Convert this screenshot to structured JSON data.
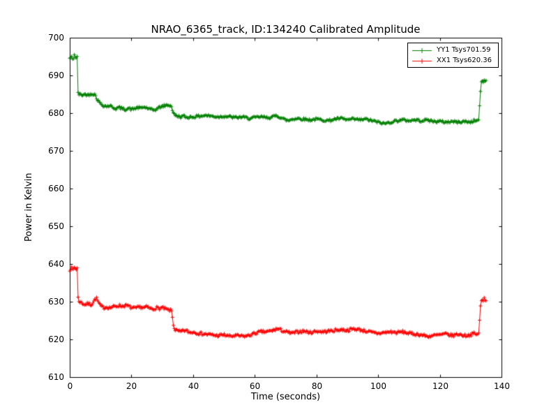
{
  "figure": {
    "background": "#ffffff",
    "axis_color": "#000000"
  },
  "chart_data": {
    "type": "line",
    "title": "NRAO_6365_track, ID:134240 Calibrated Amplitude",
    "xlabel": "Time (seconds)",
    "ylabel": "Power in Kelvin",
    "xlim": [
      0,
      140
    ],
    "ylim": [
      610,
      700
    ],
    "xticks": [
      0,
      20,
      40,
      60,
      80,
      100,
      120,
      140
    ],
    "yticks": [
      610,
      620,
      630,
      640,
      650,
      660,
      670,
      680,
      690,
      700
    ],
    "grid": false,
    "legend_position": "upper right",
    "marker": "+",
    "sample_step": 0.3,
    "series": [
      {
        "name": "YY1",
        "label": "YY1 Tsys701.59",
        "color": "#008000",
        "noise": 0.35,
        "seed": 42,
        "keypoints": [
          [
            0,
            694.5
          ],
          [
            0.5,
            695
          ],
          [
            1,
            694
          ],
          [
            1.5,
            695.5
          ],
          [
            2,
            694.5
          ],
          [
            2.4,
            694.8
          ],
          [
            2.7,
            685.5
          ],
          [
            3,
            685
          ],
          [
            4,
            684.8
          ],
          [
            5,
            685
          ],
          [
            6,
            684.8
          ],
          [
            7,
            685.2
          ],
          [
            8,
            685
          ],
          [
            8.5,
            684.5
          ],
          [
            9,
            683.5
          ],
          [
            10,
            682.5
          ],
          [
            11,
            682
          ],
          [
            12,
            681.8
          ],
          [
            13,
            682
          ],
          [
            14,
            681.5
          ],
          [
            15,
            681.2
          ],
          [
            16,
            681.5
          ],
          [
            17,
            681.2
          ],
          [
            18,
            681
          ],
          [
            19,
            681.3
          ],
          [
            20,
            681
          ],
          [
            21,
            681.2
          ],
          [
            22,
            681.5
          ],
          [
            23,
            681.3
          ],
          [
            24,
            681.6
          ],
          [
            25,
            681.4
          ],
          [
            26,
            681
          ],
          [
            27,
            680.8
          ],
          [
            28,
            681
          ],
          [
            29,
            681.5
          ],
          [
            30,
            681.8
          ],
          [
            31,
            682
          ],
          [
            32,
            682.2
          ],
          [
            33,
            681.8
          ],
          [
            33.6,
            680
          ],
          [
            34,
            679.5
          ],
          [
            35,
            679.2
          ],
          [
            36,
            679
          ],
          [
            37,
            679.2
          ],
          [
            38,
            678.8
          ],
          [
            39,
            679
          ],
          [
            40,
            679
          ],
          [
            42,
            679.2
          ],
          [
            44,
            679.4
          ],
          [
            46,
            679.2
          ],
          [
            48,
            679
          ],
          [
            50,
            679.2
          ],
          [
            52,
            679
          ],
          [
            54,
            678.8
          ],
          [
            56,
            679
          ],
          [
            58,
            678.6
          ],
          [
            60,
            678.8
          ],
          [
            62,
            679
          ],
          [
            64,
            678.8
          ],
          [
            66,
            679
          ],
          [
            67,
            679.4
          ],
          [
            68,
            679
          ],
          [
            70,
            678.2
          ],
          [
            71,
            678
          ],
          [
            72,
            678.4
          ],
          [
            74,
            678.6
          ],
          [
            76,
            678.4
          ],
          [
            78,
            678.2
          ],
          [
            80,
            678.4
          ],
          [
            82,
            678.2
          ],
          [
            84,
            678
          ],
          [
            86,
            678.4
          ],
          [
            88,
            678.6
          ],
          [
            90,
            678.2
          ],
          [
            92,
            678.4
          ],
          [
            94,
            678.2
          ],
          [
            96,
            678.4
          ],
          [
            98,
            678
          ],
          [
            100,
            677.6
          ],
          [
            102,
            677.2
          ],
          [
            104,
            677.6
          ],
          [
            106,
            678
          ],
          [
            108,
            678.2
          ],
          [
            110,
            678
          ],
          [
            112,
            678.2
          ],
          [
            114,
            678
          ],
          [
            116,
            678.2
          ],
          [
            118,
            677.8
          ],
          [
            120,
            677.8
          ],
          [
            122,
            677.6
          ],
          [
            124,
            677.8
          ],
          [
            126,
            677.6
          ],
          [
            128,
            677.8
          ],
          [
            130,
            677.6
          ],
          [
            131,
            678
          ],
          [
            132,
            678
          ],
          [
            132.6,
            678.2
          ],
          [
            133,
            683
          ],
          [
            133.3,
            687.5
          ],
          [
            133.7,
            688.5
          ],
          [
            134,
            688
          ],
          [
            134.4,
            689
          ],
          [
            134.8,
            688.2
          ],
          [
            135.2,
            688.8
          ]
        ]
      },
      {
        "name": "XX1",
        "label": "XX1 Tsys620.36",
        "color": "#ff0000",
        "noise": 0.4,
        "seed": 7,
        "keypoints": [
          [
            0,
            638.5
          ],
          [
            0.5,
            639
          ],
          [
            1,
            638.3
          ],
          [
            1.5,
            639.2
          ],
          [
            2,
            638.6
          ],
          [
            2.4,
            638.9
          ],
          [
            2.7,
            631
          ],
          [
            3,
            630.2
          ],
          [
            4,
            629.6
          ],
          [
            5,
            629.2
          ],
          [
            6,
            629.5
          ],
          [
            7,
            629.2
          ],
          [
            8,
            630.4
          ],
          [
            8.6,
            631
          ],
          [
            9.2,
            630
          ],
          [
            10,
            628.8
          ],
          [
            11,
            628.4
          ],
          [
            12,
            628.6
          ],
          [
            13,
            628.4
          ],
          [
            14,
            628.6
          ],
          [
            15,
            628.8
          ],
          [
            16,
            629
          ],
          [
            17,
            628.8
          ],
          [
            18,
            629
          ],
          [
            19,
            628.8
          ],
          [
            20,
            628.4
          ],
          [
            21,
            628.2
          ],
          [
            22,
            628.4
          ],
          [
            23,
            628.6
          ],
          [
            24,
            628.4
          ],
          [
            25,
            628.6
          ],
          [
            26,
            628.2
          ],
          [
            27,
            628
          ],
          [
            28,
            628.4
          ],
          [
            29,
            628.2
          ],
          [
            30,
            628.4
          ],
          [
            31,
            628
          ],
          [
            32,
            627.8
          ],
          [
            33,
            627.6
          ],
          [
            33.6,
            624
          ],
          [
            34,
            622.6
          ],
          [
            35,
            622.2
          ],
          [
            36,
            622
          ],
          [
            37,
            622.4
          ],
          [
            38,
            622.2
          ],
          [
            39,
            621.8
          ],
          [
            40,
            622
          ],
          [
            42,
            621.6
          ],
          [
            44,
            621.4
          ],
          [
            46,
            621.2
          ],
          [
            48,
            621
          ],
          [
            50,
            621.2
          ],
          [
            52,
            620.8
          ],
          [
            54,
            621
          ],
          [
            56,
            620.8
          ],
          [
            58,
            621
          ],
          [
            60,
            621.6
          ],
          [
            62,
            622
          ],
          [
            64,
            622
          ],
          [
            66,
            622.4
          ],
          [
            67,
            622.8
          ],
          [
            68,
            622.6
          ],
          [
            70,
            622
          ],
          [
            72,
            621.6
          ],
          [
            74,
            622
          ],
          [
            76,
            622.2
          ],
          [
            78,
            621.8
          ],
          [
            80,
            622.2
          ],
          [
            82,
            622
          ],
          [
            84,
            622.2
          ],
          [
            86,
            622.4
          ],
          [
            88,
            622.6
          ],
          [
            90,
            622.4
          ],
          [
            92,
            622.8
          ],
          [
            94,
            622.6
          ],
          [
            96,
            622.2
          ],
          [
            98,
            621.8
          ],
          [
            100,
            621.6
          ],
          [
            102,
            621.8
          ],
          [
            104,
            622
          ],
          [
            106,
            621.8
          ],
          [
            108,
            622
          ],
          [
            110,
            621.6
          ],
          [
            112,
            621.4
          ],
          [
            114,
            621.2
          ],
          [
            116,
            620.8
          ],
          [
            118,
            621
          ],
          [
            120,
            621.2
          ],
          [
            122,
            621.4
          ],
          [
            124,
            621
          ],
          [
            126,
            621.4
          ],
          [
            128,
            621
          ],
          [
            130,
            621.2
          ],
          [
            131,
            621.6
          ],
          [
            132,
            621.2
          ],
          [
            132.6,
            621.8
          ],
          [
            133,
            626
          ],
          [
            133.3,
            630
          ],
          [
            133.7,
            630.5
          ],
          [
            134,
            630
          ],
          [
            134.4,
            631
          ],
          [
            134.8,
            630.4
          ],
          [
            135.2,
            630.8
          ]
        ]
      }
    ]
  }
}
